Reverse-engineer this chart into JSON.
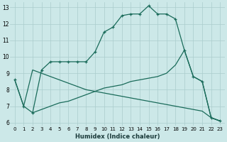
{
  "xlabel": "Humidex (Indice chaleur)",
  "xlim": [
    -0.5,
    23.5
  ],
  "ylim": [
    5.8,
    13.3
  ],
  "yticks": [
    6,
    7,
    8,
    9,
    10,
    11,
    12,
    13
  ],
  "xticks": [
    0,
    1,
    2,
    3,
    4,
    5,
    6,
    7,
    8,
    9,
    10,
    11,
    12,
    13,
    14,
    15,
    16,
    17,
    18,
    19,
    20,
    21,
    22,
    23
  ],
  "bg_color": "#cce8e8",
  "grid_color": "#aacccc",
  "line_color": "#1a6b5a",
  "line1_x": [
    0,
    1,
    2,
    3,
    4,
    5,
    6,
    7,
    8,
    9,
    10,
    11,
    12,
    13,
    14,
    15,
    16,
    17,
    18,
    19,
    20,
    21,
    22,
    23
  ],
  "line1_y": [
    8.6,
    7.0,
    6.6,
    9.2,
    9.7,
    9.7,
    9.7,
    9.7,
    9.7,
    10.3,
    11.5,
    11.8,
    12.5,
    12.6,
    12.6,
    13.1,
    12.6,
    12.6,
    12.3,
    10.4,
    8.8,
    8.5,
    6.3,
    6.1
  ],
  "line2_x": [
    2,
    3,
    4,
    5,
    6,
    7,
    8,
    9,
    10,
    11,
    12,
    13,
    14,
    15,
    16,
    17,
    18,
    19,
    20,
    21,
    22,
    23
  ],
  "line2_y": [
    6.6,
    6.8,
    7.0,
    7.2,
    7.3,
    7.5,
    7.7,
    7.9,
    8.1,
    8.2,
    8.3,
    8.5,
    8.6,
    8.7,
    8.8,
    9.0,
    9.5,
    10.4,
    8.8,
    8.5,
    6.3,
    6.1
  ],
  "line3_x": [
    0,
    1,
    2,
    3,
    4,
    5,
    6,
    7,
    8,
    9,
    10,
    11,
    12,
    13,
    14,
    15,
    16,
    17,
    18,
    19,
    20,
    21,
    22,
    23
  ],
  "line3_y": [
    8.6,
    7.0,
    9.2,
    9.0,
    8.8,
    8.6,
    8.4,
    8.2,
    8.0,
    7.9,
    7.8,
    7.7,
    7.6,
    7.5,
    7.4,
    7.3,
    7.2,
    7.1,
    7.0,
    6.9,
    6.8,
    6.7,
    6.3,
    6.1
  ]
}
